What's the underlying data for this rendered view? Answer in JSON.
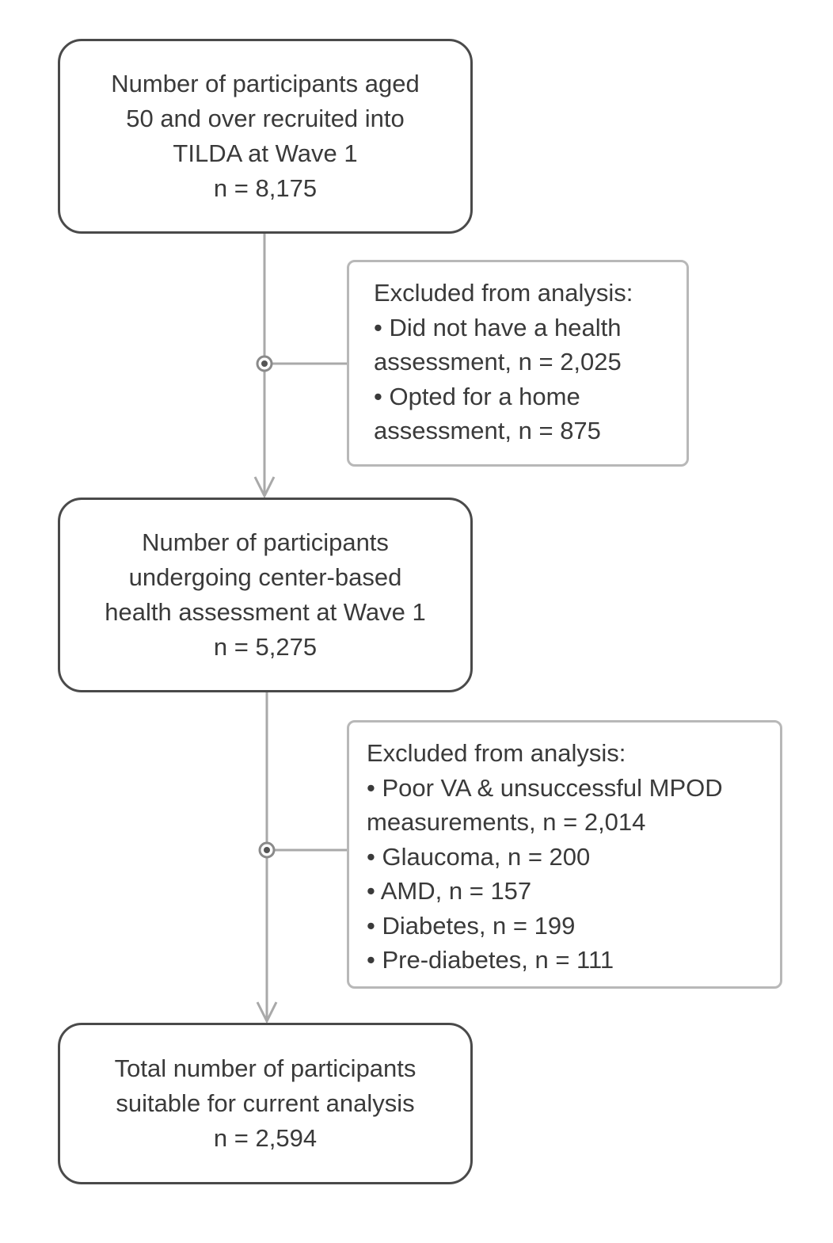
{
  "diagram": {
    "type": "participant-flow",
    "boxes": [
      {
        "id": "wave1",
        "lines": [
          "Number of participants aged",
          "50 and over recruited into",
          "TILDA at Wave 1",
          "n = 8,175"
        ]
      },
      {
        "id": "center",
        "lines": [
          "Number of participants",
          "undergoing center-based",
          "health assessment at Wave 1",
          "n = 5,275"
        ]
      },
      {
        "id": "final",
        "lines": [
          "Total number of participants",
          "suitable for current analysis",
          "n = 2,594"
        ]
      }
    ],
    "exclusions": [
      {
        "id": "excl1",
        "lines": [
          "Excluded from analysis:",
          "• Did not have a health",
          "assessment, n = 2,025",
          "• Opted for a home",
          "assessment, n = 875"
        ]
      },
      {
        "id": "excl2",
        "lines": [
          "Excluded from analysis:",
          "• Poor VA & unsuccessful MPOD",
          "measurements, n = 2,014",
          "• Glaucoma, n = 200",
          "• AMD, n = 157",
          "• Diabetes, n = 199",
          "• Pre-diabetes, n = 111"
        ]
      }
    ],
    "edges": [
      {
        "from": "wave1",
        "to": "center",
        "excluded": "excl1"
      },
      {
        "from": "center",
        "to": "final",
        "excluded": "excl2"
      }
    ],
    "colors": {
      "main_border": "#4a4a4a",
      "side_border": "#b8b8b8",
      "connector": "#a9a9a9",
      "text": "#3a3a3a"
    }
  }
}
